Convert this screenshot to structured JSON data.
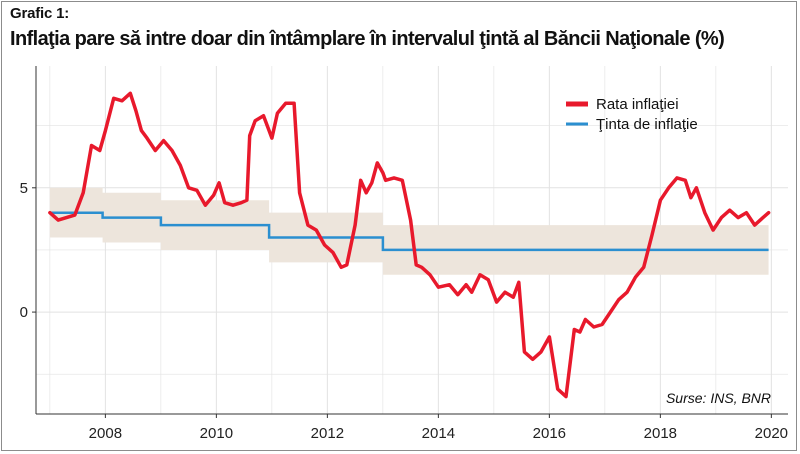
{
  "header": {
    "label": "Grafic 1:",
    "title": "Inflaţia pare să intre doar din întâmplare în intervalul ţintă al Băncii Naţionale (%)"
  },
  "source": "Surse: INS, BNR",
  "colors": {
    "inflation": "#e8192c",
    "target": "#2b8fd0",
    "band": "#ede5dc",
    "grid": "#e2e2e2",
    "axis": "#333333"
  },
  "chart_data": {
    "type": "line",
    "title": "Inflaţia pare să intre doar din întâmplare în intervalul ţintă al Băncii Naţionale (%)",
    "xlabel": "",
    "ylabel": "",
    "xlim": [
      2006.75,
      2020.3
    ],
    "ylim": [
      -4.1,
      9.9
    ],
    "x_ticks": [
      2008,
      2010,
      2012,
      2014,
      2016,
      2018,
      2020
    ],
    "y_ticks": [
      0,
      5
    ],
    "grid": true,
    "legend_position": "top-right",
    "legend": [
      "Rata inflaţiei",
      "Ţinta de inflaţie"
    ],
    "series": [
      {
        "name": "Rata inflaţiei",
        "x": [
          2007.0,
          2007.15,
          2007.3,
          2007.45,
          2007.6,
          2007.75,
          2007.9,
          2008.0,
          2008.15,
          2008.3,
          2008.45,
          2008.55,
          2008.65,
          2008.75,
          2008.9,
          2009.05,
          2009.2,
          2009.35,
          2009.5,
          2009.65,
          2009.8,
          2009.95,
          2010.05,
          2010.15,
          2010.3,
          2010.45,
          2010.55,
          2010.6,
          2010.7,
          2010.85,
          2011.0,
          2011.1,
          2011.25,
          2011.4,
          2011.5,
          2011.65,
          2011.8,
          2011.95,
          2012.1,
          2012.25,
          2012.35,
          2012.5,
          2012.6,
          2012.7,
          2012.8,
          2012.9,
          2013.0,
          2013.05,
          2013.2,
          2013.35,
          2013.5,
          2013.6,
          2013.7,
          2013.85,
          2014.0,
          2014.2,
          2014.35,
          2014.5,
          2014.6,
          2014.75,
          2014.9,
          2015.05,
          2015.2,
          2015.35,
          2015.45,
          2015.55,
          2015.7,
          2015.85,
          2016.0,
          2016.15,
          2016.3,
          2016.45,
          2016.55,
          2016.65,
          2016.8,
          2016.95,
          2017.1,
          2017.25,
          2017.4,
          2017.55,
          2017.7,
          2017.85,
          2018.0,
          2018.15,
          2018.3,
          2018.45,
          2018.55,
          2018.65,
          2018.8,
          2018.95,
          2019.1,
          2019.25,
          2019.4,
          2019.55,
          2019.7,
          2019.85,
          2019.95
        ],
        "values": [
          4.0,
          3.7,
          3.8,
          3.9,
          4.8,
          6.7,
          6.5,
          7.3,
          8.6,
          8.5,
          8.8,
          8.1,
          7.3,
          7.0,
          6.5,
          6.9,
          6.5,
          5.9,
          5.0,
          4.9,
          4.3,
          4.7,
          5.2,
          4.4,
          4.3,
          4.4,
          4.5,
          7.1,
          7.7,
          7.9,
          7.0,
          8.0,
          8.4,
          8.4,
          4.8,
          3.5,
          3.3,
          2.7,
          2.4,
          1.8,
          1.9,
          3.5,
          5.3,
          4.8,
          5.2,
          6.0,
          5.6,
          5.3,
          5.4,
          5.3,
          3.7,
          1.9,
          1.8,
          1.5,
          1.0,
          1.1,
          0.7,
          1.1,
          0.8,
          1.5,
          1.3,
          0.4,
          0.8,
          0.6,
          1.2,
          -1.6,
          -1.9,
          -1.6,
          -1.0,
          -3.1,
          -3.4,
          -0.7,
          -0.8,
          -0.3,
          -0.6,
          -0.5,
          0.0,
          0.5,
          0.8,
          1.4,
          1.8,
          3.1,
          4.5,
          5.0,
          5.4,
          5.3,
          4.6,
          5.0,
          4.0,
          3.3,
          3.8,
          4.1,
          3.8,
          4.0,
          3.5,
          3.8,
          4.0
        ]
      },
      {
        "name": "Ţinta de inflaţie",
        "x": [
          2007.0,
          2007.95,
          2007.95,
          2009.0,
          2009.0,
          2010.95,
          2010.95,
          2013.0,
          2013.0,
          2019.95
        ],
        "values": [
          4.0,
          4.0,
          3.8,
          3.8,
          3.5,
          3.5,
          3.0,
          3.0,
          2.5,
          2.5
        ],
        "band_half_width": 1.0
      }
    ]
  }
}
